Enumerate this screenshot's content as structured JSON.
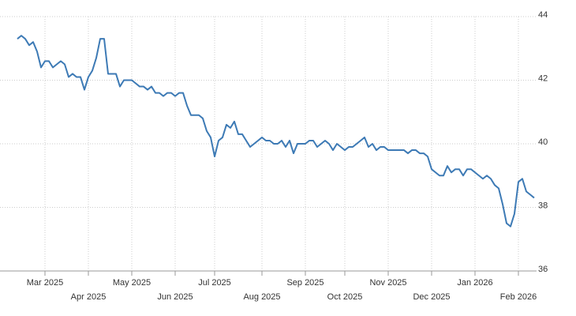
{
  "chart_data": {
    "type": "line",
    "color": "#3d7ab5",
    "grid": true,
    "y_axis_side": "right",
    "categories": [
      null,
      null,
      null,
      null,
      null,
      null,
      null,
      "Mar 2025",
      null,
      null,
      null,
      null,
      null,
      null,
      null,
      null,
      null,
      null,
      "Apr 2025",
      null,
      null,
      null,
      null,
      null,
      null,
      null,
      null,
      null,
      null,
      "May 2025",
      null,
      null,
      null,
      null,
      null,
      null,
      null,
      null,
      null,
      null,
      "Jun 2025",
      null,
      null,
      null,
      null,
      null,
      null,
      null,
      null,
      null,
      "Jul 2025",
      null,
      null,
      null,
      null,
      null,
      null,
      null,
      null,
      null,
      null,
      null,
      "Aug 2025",
      null,
      null,
      null,
      null,
      null,
      null,
      null,
      null,
      null,
      null,
      "Sep 2025",
      null,
      null,
      null,
      null,
      null,
      null,
      null,
      null,
      null,
      "Oct 2025",
      null,
      null,
      null,
      null,
      null,
      null,
      null,
      null,
      null,
      null,
      "Nov 2025",
      null,
      null,
      null,
      null,
      null,
      null,
      null,
      null,
      null,
      null,
      "Dec 2025",
      null,
      null,
      null,
      null,
      null,
      null,
      null,
      null,
      null,
      null,
      "Jan 2026",
      null,
      null,
      null,
      null,
      null,
      null,
      null,
      null,
      null,
      null,
      "Feb 2026",
      null,
      null,
      null,
      null
    ],
    "values": [
      43.3,
      43.4,
      43.3,
      43.1,
      43.2,
      42.9,
      42.4,
      42.6,
      42.6,
      42.4,
      42.5,
      42.6,
      42.5,
      42.1,
      42.2,
      42.1,
      42.1,
      41.7,
      42.1,
      42.3,
      42.7,
      43.3,
      43.3,
      42.2,
      42.2,
      42.2,
      41.8,
      42.0,
      42.0,
      42.0,
      41.9,
      41.8,
      41.8,
      41.7,
      41.8,
      41.6,
      41.6,
      41.5,
      41.6,
      41.6,
      41.5,
      41.6,
      41.6,
      41.2,
      40.9,
      40.9,
      40.9,
      40.8,
      40.4,
      40.2,
      39.6,
      40.1,
      40.2,
      40.6,
      40.5,
      40.7,
      40.3,
      40.3,
      40.1,
      39.9,
      40.0,
      40.1,
      40.2,
      40.1,
      40.1,
      40.0,
      40.0,
      40.1,
      39.9,
      40.1,
      39.7,
      40.0,
      40.0,
      40.0,
      40.1,
      40.1,
      39.9,
      40.0,
      40.1,
      40.0,
      39.8,
      40.0,
      39.9,
      39.8,
      39.9,
      39.9,
      40.0,
      40.1,
      40.2,
      39.9,
      40.0,
      39.8,
      39.9,
      39.9,
      39.8,
      39.8,
      39.8,
      39.8,
      39.8,
      39.7,
      39.8,
      39.8,
      39.7,
      39.7,
      39.6,
      39.2,
      39.1,
      39.0,
      39.0,
      39.3,
      39.1,
      39.2,
      39.2,
      39.0,
      39.2,
      39.2,
      39.1,
      39.0,
      38.9,
      39.0,
      38.9,
      38.7,
      38.6,
      38.1,
      37.5,
      37.4,
      37.8,
      38.8,
      38.9,
      38.5,
      38.4,
      38.3
    ],
    "ylim": [
      36,
      44
    ],
    "yticks": [
      36,
      38,
      40,
      42,
      44
    ]
  }
}
